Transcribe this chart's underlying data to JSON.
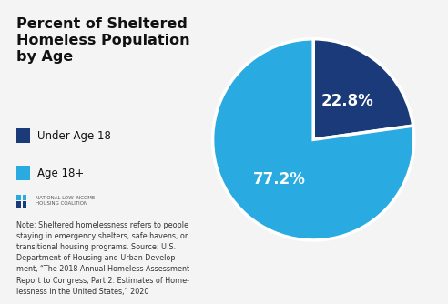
{
  "title": "Percent of Sheltered\nHomeless Population\nby Age",
  "slices": [
    22.8,
    77.2
  ],
  "labels": [
    "22.8%",
    "77.2%"
  ],
  "colors": [
    "#1a3a7a",
    "#29abe2"
  ],
  "legend_labels": [
    "Under Age 18",
    "Age 18+"
  ],
  "startangle": 90,
  "note_text": "Note: Sheltered homelessness refers to people\nstaying in emergency shelters, safe havens, or\ntransitional housing programs. Source: U.S.\nDepartment of Housing and Urban Develop-\nment, “The 2018 Annual Homeless Assessment\nReport to Congress, Part 2: Estimates of Home-\nlessness in the United States,” 2020",
  "background_color": "#f4f4f4",
  "title_fontsize": 11.5,
  "label_fontsize": 12,
  "legend_fontsize": 8.5,
  "note_fontsize": 5.8,
  "logo_text": "NATIONAL LOW INCOME\nHOUSING COALITION"
}
